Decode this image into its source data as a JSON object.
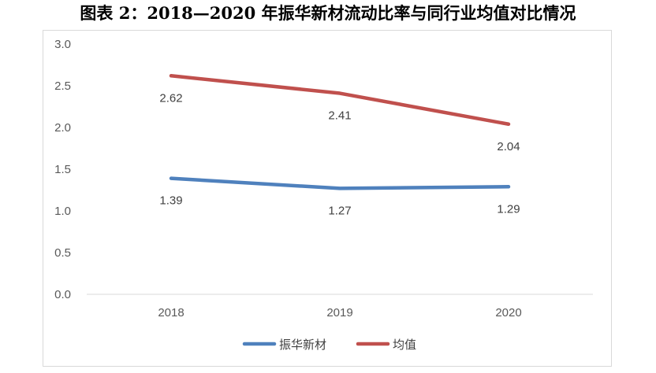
{
  "title": "图表 2：2018—2020 年振华新材流动比率与同行业均值对比情况",
  "chart_data": {
    "type": "line",
    "title": "图表 2：2018—2020 年振华新材流动比率与同行业均值对比情况",
    "categories": [
      "2018",
      "2019",
      "2020"
    ],
    "ylim": [
      0,
      3.0
    ],
    "yticks": [
      "0.0",
      "0.5",
      "1.0",
      "1.5",
      "2.0",
      "2.5",
      "3.0"
    ],
    "grid": false,
    "legend_position": "bottom",
    "series": [
      {
        "name": "振华新材",
        "values": [
          1.39,
          1.27,
          1.29
        ],
        "labels": [
          "1.39",
          "1.27",
          "1.29"
        ],
        "color": "#4f81bd"
      },
      {
        "name": "均值",
        "values": [
          2.62,
          2.41,
          2.04
        ],
        "labels": [
          "2.62",
          "2.41",
          "2.04"
        ],
        "color": "#c0504d"
      }
    ]
  }
}
